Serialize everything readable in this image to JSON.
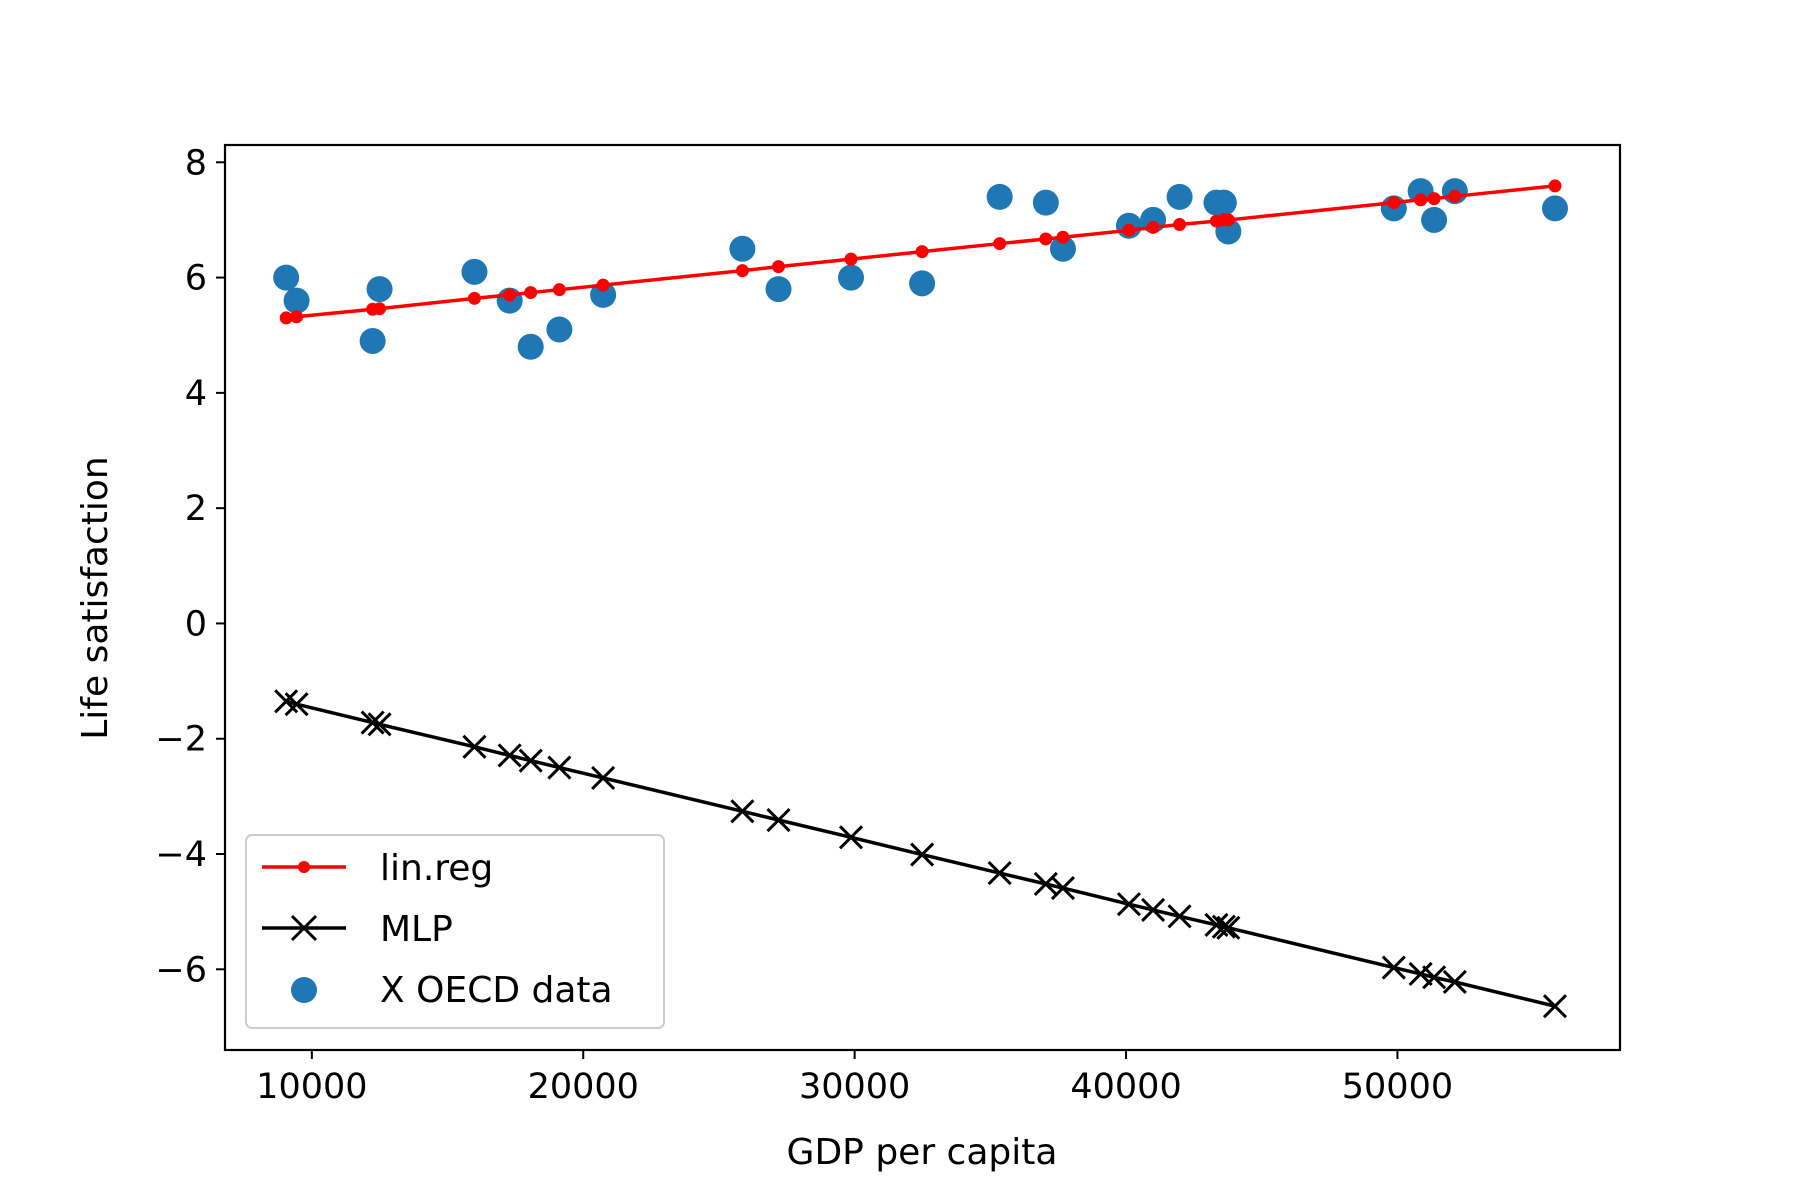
{
  "chart_data": {
    "type": "scatter",
    "title": "",
    "xlabel": "GDP per capita",
    "ylabel": "Life satisfaction",
    "xlim": [
      6800,
      58200
    ],
    "ylim": [
      -7.4,
      8.3
    ],
    "xticks": [
      10000,
      20000,
      30000,
      40000,
      50000
    ],
    "xtick_labels": [
      "10000",
      "20000",
      "30000",
      "40000",
      "50000"
    ],
    "yticks": [
      8,
      6,
      4,
      2,
      0,
      -2,
      -4,
      -6
    ],
    "ytick_labels": [
      "8",
      "6",
      "4",
      "2",
      "0",
      "−2",
      "−4",
      "−6"
    ],
    "grid": false,
    "legend_position": "lower-left",
    "x": [
      9054,
      9437,
      12240,
      12495,
      15991,
      17288,
      18064,
      19121,
      20732,
      25864,
      27195,
      29866,
      32485,
      35343,
      37044,
      37675,
      40106,
      40996,
      41973,
      43331,
      43603,
      43770,
      49866,
      50854,
      51350,
      52114,
      55805
    ],
    "series": [
      {
        "name": "lin.reg",
        "kind": "line-dot",
        "color": "#ff0000",
        "y": [
          5.3,
          5.32,
          5.45,
          5.46,
          5.64,
          5.7,
          5.74,
          5.79,
          5.87,
          6.12,
          6.19,
          6.32,
          6.45,
          6.59,
          6.67,
          6.7,
          6.82,
          6.87,
          6.92,
          6.98,
          7.0,
          7.0,
          7.3,
          7.35,
          7.37,
          7.41,
          7.59
        ]
      },
      {
        "name": "MLP",
        "kind": "line-x",
        "color": "#000000",
        "y": [
          -1.35,
          -1.4,
          -1.72,
          -1.75,
          -2.14,
          -2.29,
          -2.38,
          -2.5,
          -2.68,
          -3.26,
          -3.41,
          -3.71,
          -4.01,
          -4.33,
          -4.52,
          -4.59,
          -4.87,
          -4.97,
          -5.08,
          -5.23,
          -5.26,
          -5.28,
          -5.97,
          -6.08,
          -6.14,
          -6.22,
          -6.64
        ]
      },
      {
        "name": "X OECD data",
        "kind": "scatter",
        "color": "#1f77b4",
        "y": [
          6.0,
          5.6,
          4.9,
          5.8,
          6.1,
          5.6,
          4.8,
          5.1,
          5.7,
          6.5,
          5.8,
          6.0,
          5.9,
          7.4,
          7.3,
          6.5,
          6.9,
          7.0,
          7.4,
          7.3,
          7.3,
          6.8,
          7.2,
          7.5,
          7.0,
          7.5,
          7.2
        ]
      }
    ]
  }
}
